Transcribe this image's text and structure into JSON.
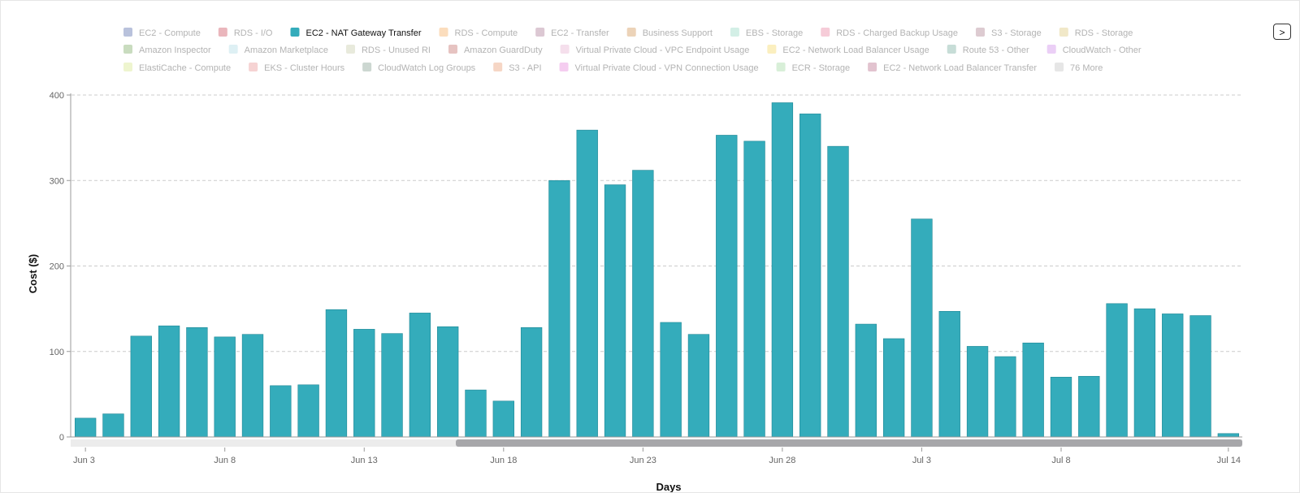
{
  "legend": {
    "items": [
      {
        "label": "EC2 - Compute",
        "color": "#b9c2dc",
        "active": false
      },
      {
        "label": "RDS - I/O",
        "color": "#eab6bc",
        "active": false
      },
      {
        "label": "EC2 - NAT Gateway Transfer",
        "color": "#34acbb",
        "active": true
      },
      {
        "label": "RDS - Compute",
        "color": "#fbddbd",
        "active": false
      },
      {
        "label": "EC2 - Transfer",
        "color": "#dcc8d3",
        "active": false
      },
      {
        "label": "Business Support",
        "color": "#ecd3b8",
        "active": false
      },
      {
        "label": "EBS - Storage",
        "color": "#d3efe6",
        "active": false
      },
      {
        "label": "RDS - Charged Backup Usage",
        "color": "#f6ccd8",
        "active": false
      },
      {
        "label": "S3 - Storage",
        "color": "#ddcbd1",
        "active": false
      },
      {
        "label": "RDS - Storage",
        "color": "#f1e8c8",
        "active": false
      },
      {
        "label": "Amazon Inspector",
        "color": "#c9dcbf",
        "active": false
      },
      {
        "label": "Amazon Marketplace",
        "color": "#def0f4",
        "active": false
      },
      {
        "label": "RDS - Unused RI",
        "color": "#e8eadc",
        "active": false
      },
      {
        "label": "Amazon GuardDuty",
        "color": "#e6c3c1",
        "active": false
      },
      {
        "label": "Virtual Private Cloud - VPC Endpoint Usage",
        "color": "#f5dfec",
        "active": false
      },
      {
        "label": "EC2 - Network Load Balancer Usage",
        "color": "#fbefbf",
        "active": false
      },
      {
        "label": "Route 53 - Other",
        "color": "#c7ddd7",
        "active": false
      },
      {
        "label": "CloudWatch - Other",
        "color": "#ebcff6",
        "active": false
      },
      {
        "label": "ElastiCache - Compute",
        "color": "#eef5cf",
        "active": false
      },
      {
        "label": "EKS - Cluster Hours",
        "color": "#f6d3d3",
        "active": false
      },
      {
        "label": "CloudWatch Log Groups",
        "color": "#ccd7d1",
        "active": false
      },
      {
        "label": "S3 - API",
        "color": "#f6d6c5",
        "active": false
      },
      {
        "label": "Virtual Private Cloud - VPN Connection Usage",
        "color": "#f5cdf0",
        "active": false
      },
      {
        "label": "ECR - Storage",
        "color": "#d8efd8",
        "active": false
      },
      {
        "label": "EC2 - Network Load Balancer Transfer",
        "color": "#e2c3cf",
        "active": false
      },
      {
        "label": "76 More",
        "color": "#e6e6e6",
        "active": false
      }
    ]
  },
  "nav": {
    "next_label": ">"
  },
  "colors": {
    "bar": "#34acbb",
    "bar_stroke": "#1f8795",
    "grid": "#cccccc",
    "axis": "#999999"
  },
  "chart_data": {
    "type": "bar",
    "title": "",
    "xlabel": "Days",
    "ylabel": "Cost ($)",
    "ylim": [
      0,
      400
    ],
    "yticks": [
      0,
      100,
      200,
      300,
      400
    ],
    "xtick_labels": [
      "Jun 3",
      "Jun 8",
      "Jun 13",
      "Jun 18",
      "Jun 23",
      "Jun 28",
      "Jul 3",
      "Jul 8",
      "Jul 14"
    ],
    "grid": true,
    "legend_position": "top",
    "categories": [
      "Jun 3",
      "Jun 4",
      "Jun 5",
      "Jun 6",
      "Jun 7",
      "Jun 8",
      "Jun 9",
      "Jun 10",
      "Jun 11",
      "Jun 12",
      "Jun 13",
      "Jun 14",
      "Jun 15",
      "Jun 16",
      "Jun 17",
      "Jun 18",
      "Jun 19",
      "Jun 20",
      "Jun 21",
      "Jun 22",
      "Jun 23",
      "Jun 24",
      "Jun 25",
      "Jun 26",
      "Jun 27",
      "Jun 28",
      "Jun 29",
      "Jun 30",
      "Jul 1",
      "Jul 2",
      "Jul 3",
      "Jul 4",
      "Jul 5",
      "Jul 6",
      "Jul 7",
      "Jul 8",
      "Jul 9",
      "Jul 10",
      "Jul 11",
      "Jul 12",
      "Jul 13",
      "Jul 14"
    ],
    "series": [
      {
        "name": "EC2 - NAT Gateway Transfer",
        "values": [
          22,
          27,
          118,
          130,
          128,
          117,
          120,
          60,
          61,
          149,
          126,
          121,
          145,
          129,
          55,
          42,
          128,
          300,
          359,
          295,
          312,
          134,
          120,
          353,
          346,
          391,
          378,
          340,
          132,
          115,
          255,
          147,
          106,
          94,
          110,
          70,
          71,
          156,
          150,
          144,
          142,
          4
        ]
      }
    ]
  }
}
